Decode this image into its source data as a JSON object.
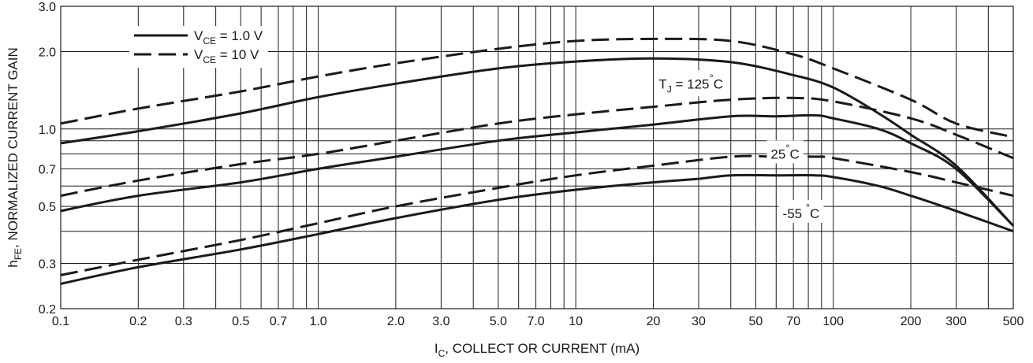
{
  "chart_data": {
    "type": "line",
    "title": "",
    "xlabel": {
      "main": "I",
      "sub": "C",
      "rest": ", COLLECT OR CURRENT (mA)"
    },
    "ylabel": {
      "main": "h",
      "sub": "FE",
      "rest": ", NORMALIZED CURRENT GAIN"
    },
    "x_scale": "log",
    "y_scale": "log",
    "xlim": [
      0.1,
      500
    ],
    "ylim": [
      0.2,
      3.0
    ],
    "grid": true,
    "x_ticks": [
      {
        "value": 0.1,
        "label": "0.1"
      },
      {
        "value": 0.2,
        "label": "0.2"
      },
      {
        "value": 0.3,
        "label": "0.3"
      },
      {
        "value": 0.5,
        "label": "0.5"
      },
      {
        "value": 0.7,
        "label": "0.7"
      },
      {
        "value": 1.0,
        "label": "1.0"
      },
      {
        "value": 2.0,
        "label": "2.0"
      },
      {
        "value": 3.0,
        "label": "3.0"
      },
      {
        "value": 5.0,
        "label": "5.0"
      },
      {
        "value": 7.0,
        "label": "7.0"
      },
      {
        "value": 10,
        "label": "10"
      },
      {
        "value": 20,
        "label": "20"
      },
      {
        "value": 30,
        "label": "30"
      },
      {
        "value": 50,
        "label": "50"
      },
      {
        "value": 70,
        "label": "70"
      },
      {
        "value": 100,
        "label": "100"
      },
      {
        "value": 200,
        "label": "200"
      },
      {
        "value": 300,
        "label": "300"
      },
      {
        "value": 500,
        "label": "500"
      }
    ],
    "y_ticks": [
      {
        "value": 0.2,
        "label": "0.2"
      },
      {
        "value": 0.3,
        "label": "0.3"
      },
      {
        "value": 0.5,
        "label": "0.5"
      },
      {
        "value": 0.7,
        "label": "0.7"
      },
      {
        "value": 1.0,
        "label": "1.0"
      },
      {
        "value": 2.0,
        "label": "2.0"
      },
      {
        "value": 3.0,
        "label": "3.0"
      }
    ],
    "legend": {
      "placement": "top-left",
      "entries": [
        {
          "main": "V",
          "sub": "CE",
          "rest": " = 1.0 V",
          "style": "solid"
        },
        {
          "main": "V",
          "sub": "CE",
          "rest": " = 10 V",
          "style": "dashed"
        }
      ]
    },
    "annotations": [
      {
        "text": "T",
        "sub": "J",
        "rest": " = 125",
        "degree": "°",
        "unit": "C",
        "x": 28,
        "y": 1.5
      },
      {
        "text": "",
        "sub": "",
        "rest": "25",
        "degree": "°",
        "unit": "C",
        "x": 65,
        "y": 0.8
      },
      {
        "text": "",
        "sub": "",
        "rest": "-55 ",
        "degree": "°",
        "unit": "C",
        "x": 75,
        "y": 0.47
      }
    ],
    "series": [
      {
        "temperature": "125 °C",
        "style": "solid",
        "x": [
          0.1,
          0.2,
          0.5,
          1,
          2,
          5,
          10,
          20,
          40,
          70,
          100,
          150,
          200,
          300,
          500
        ],
        "y": [
          0.88,
          0.98,
          1.15,
          1.33,
          1.5,
          1.72,
          1.83,
          1.88,
          1.82,
          1.62,
          1.45,
          1.15,
          0.95,
          0.72,
          0.42
        ]
      },
      {
        "temperature": "125 °C",
        "style": "dashed",
        "x": [
          0.1,
          0.2,
          0.5,
          1,
          2,
          5,
          10,
          20,
          40,
          70,
          100,
          200,
          300,
          500
        ],
        "y": [
          1.05,
          1.2,
          1.4,
          1.6,
          1.8,
          2.05,
          2.2,
          2.24,
          2.2,
          1.95,
          1.72,
          1.3,
          1.05,
          0.93
        ]
      },
      {
        "temperature": "25 °C",
        "style": "solid",
        "x": [
          0.1,
          0.2,
          0.5,
          1,
          2,
          5,
          10,
          20,
          40,
          60,
          85,
          100,
          150,
          200,
          300,
          500
        ],
        "y": [
          0.48,
          0.55,
          0.62,
          0.7,
          0.78,
          0.9,
          0.97,
          1.04,
          1.12,
          1.12,
          1.13,
          1.1,
          1.0,
          0.88,
          0.7,
          0.42
        ]
      },
      {
        "temperature": "25 °C",
        "style": "dashed",
        "x": [
          0.1,
          0.2,
          0.5,
          1,
          2,
          5,
          10,
          20,
          40,
          70,
          100,
          200,
          300,
          500
        ],
        "y": [
          0.55,
          0.63,
          0.73,
          0.8,
          0.9,
          1.05,
          1.14,
          1.22,
          1.3,
          1.32,
          1.28,
          1.1,
          0.95,
          0.77
        ]
      },
      {
        "temperature": "-55 °C",
        "style": "solid",
        "x": [
          0.1,
          0.2,
          0.5,
          1,
          2,
          5,
          10,
          20,
          30,
          40,
          60,
          85,
          100,
          150,
          200,
          300,
          500
        ],
        "y": [
          0.25,
          0.29,
          0.34,
          0.39,
          0.45,
          0.53,
          0.58,
          0.62,
          0.64,
          0.66,
          0.66,
          0.66,
          0.65,
          0.6,
          0.55,
          0.48,
          0.4
        ]
      },
      {
        "temperature": "-55 °C",
        "style": "dashed",
        "x": [
          0.1,
          0.2,
          0.5,
          1,
          2,
          5,
          10,
          20,
          40,
          60,
          85,
          100,
          200,
          300,
          500
        ],
        "y": [
          0.27,
          0.31,
          0.37,
          0.43,
          0.5,
          0.59,
          0.66,
          0.72,
          0.78,
          0.78,
          0.78,
          0.77,
          0.68,
          0.62,
          0.55
        ]
      }
    ]
  }
}
